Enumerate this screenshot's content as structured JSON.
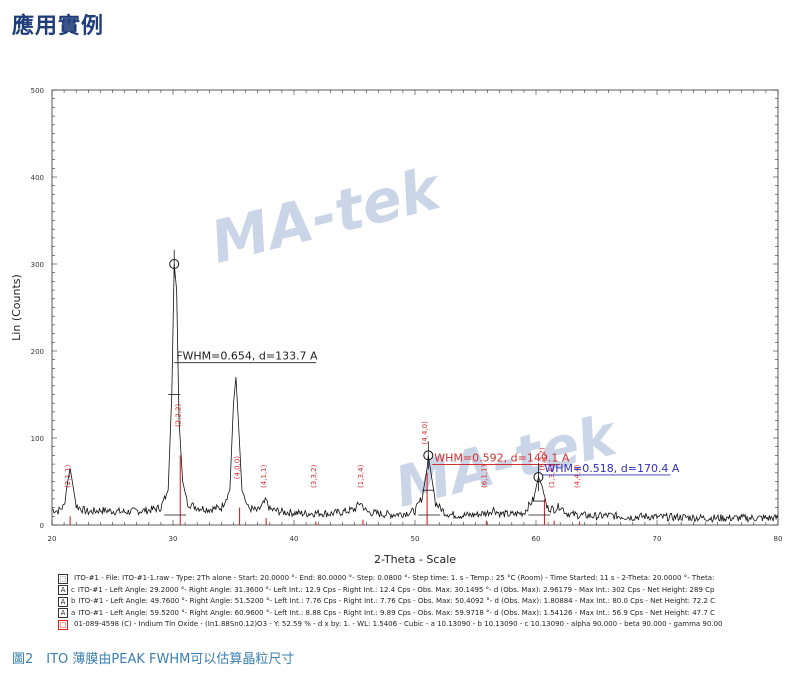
{
  "page": {
    "title": "應用實例",
    "caption": "圖2　ITO 薄膜由PEAK FWHM可以估算晶粒尺寸"
  },
  "watermark": "MA-tek",
  "chart_data": {
    "type": "line",
    "title": "",
    "xlabel": "2-Theta - Scale",
    "ylabel": "Lin (Counts)",
    "xlim": [
      20,
      80
    ],
    "ylim": [
      0,
      500
    ],
    "xticks": [
      20,
      30,
      40,
      50,
      60,
      70,
      80
    ],
    "yticks": [
      0,
      100,
      200,
      300,
      400,
      500
    ],
    "grid": false,
    "series": [
      {
        "values_xy": [
          [
            20.0,
            18
          ],
          [
            20.5,
            16
          ],
          [
            21.0,
            22
          ],
          [
            21.3,
            50
          ],
          [
            21.5,
            65
          ],
          [
            21.7,
            48
          ],
          [
            22.0,
            22
          ],
          [
            22.5,
            18
          ],
          [
            23.0,
            15
          ],
          [
            24.0,
            17
          ],
          [
            25.0,
            16
          ],
          [
            26.0,
            15
          ],
          [
            27.0,
            16
          ],
          [
            28.0,
            17
          ],
          [
            29.0,
            20
          ],
          [
            29.6,
            40
          ],
          [
            29.9,
            150
          ],
          [
            30.1,
            300
          ],
          [
            30.3,
            270
          ],
          [
            30.5,
            120
          ],
          [
            30.8,
            50
          ],
          [
            31.2,
            25
          ],
          [
            32.0,
            20
          ],
          [
            33.0,
            18
          ],
          [
            34.0,
            20
          ],
          [
            34.7,
            40
          ],
          [
            35.0,
            140
          ],
          [
            35.2,
            170
          ],
          [
            35.4,
            120
          ],
          [
            35.7,
            40
          ],
          [
            36.2,
            20
          ],
          [
            37.0,
            16
          ],
          [
            37.7,
            28
          ],
          [
            38.0,
            18
          ],
          [
            39.0,
            15
          ],
          [
            40.0,
            14
          ],
          [
            41.0,
            13
          ],
          [
            42.0,
            14
          ],
          [
            43.0,
            13
          ],
          [
            44.0,
            15
          ],
          [
            45.0,
            18
          ],
          [
            45.5,
            26
          ],
          [
            46.0,
            15
          ],
          [
            47.0,
            13
          ],
          [
            48.0,
            12
          ],
          [
            49.0,
            13
          ],
          [
            50.0,
            16
          ],
          [
            50.6,
            32
          ],
          [
            51.0,
            65
          ],
          [
            51.1,
            80
          ],
          [
            51.3,
            62
          ],
          [
            51.7,
            25
          ],
          [
            52.5,
            14
          ],
          [
            53.0,
            12
          ],
          [
            54.0,
            11
          ],
          [
            55.0,
            12
          ],
          [
            56.0,
            14
          ],
          [
            56.5,
            18
          ],
          [
            57.0,
            13
          ],
          [
            58.0,
            12
          ],
          [
            59.0,
            14
          ],
          [
            59.8,
            30
          ],
          [
            60.2,
            55
          ],
          [
            60.5,
            45
          ],
          [
            60.9,
            20
          ],
          [
            61.5,
            18
          ],
          [
            62.0,
            22
          ],
          [
            62.5,
            14
          ],
          [
            63.0,
            12
          ],
          [
            64.0,
            11
          ],
          [
            65.0,
            10
          ],
          [
            66.0,
            11
          ],
          [
            67.0,
            10
          ],
          [
            68.0,
            9
          ],
          [
            69.0,
            10
          ],
          [
            70.0,
            9
          ],
          [
            72.0,
            9
          ],
          [
            74.0,
            8
          ],
          [
            76.0,
            8
          ],
          [
            78.0,
            8
          ],
          [
            80.0,
            8
          ]
        ]
      }
    ],
    "reference_peaks": [
      {
        "x": 21.5,
        "h": 10,
        "label": "(2,1,1)"
      },
      {
        "x": 30.6,
        "h": 80,
        "label": "(2,2,2)"
      },
      {
        "x": 35.5,
        "h": 20,
        "label": "(4,0,0)"
      },
      {
        "x": 37.7,
        "h": 8,
        "label": "(4,1,1)"
      },
      {
        "x": 41.8,
        "h": 4,
        "label": "(3,3,2)"
      },
      {
        "x": 45.7,
        "h": 6,
        "label": "(1,3,4)"
      },
      {
        "x": 51.0,
        "h": 60,
        "label": "(4,4,0)"
      },
      {
        "x": 55.9,
        "h": 5,
        "label": "(6,1,1)"
      },
      {
        "x": 60.7,
        "h": 30,
        "label": "(6,2,2)"
      },
      {
        "x": 61.5,
        "h": 5,
        "label": "(1,3,6)"
      },
      {
        "x": 63.6,
        "h": 4,
        "label": "(4,4,4)"
      }
    ],
    "annotations": [
      {
        "text": "FWHM=0.654, d=133.7 A",
        "x": 30.1,
        "y": 300,
        "color": "#222222"
      },
      {
        "text": "WHM=0.592, d=149.1 A",
        "x": 51.1,
        "y": 80,
        "color": "#d03030"
      },
      {
        "text": "WHM=0.518, d=170.4 A",
        "x": 60.2,
        "y": 55,
        "color": "#3030c0"
      }
    ],
    "legend": [
      {
        "symbol": "⬚",
        "index": "",
        "text": "ITO-#1 - File: ITO-#1-1.raw - Type: 2Th alone - Start: 20.0000 °- End: 80.0000 °- Step: 0.0800 °- Step time: 1. s - Temp.: 25 °C (Room) - Time Started: 11 s - 2-Theta: 20.0000 °- Theta:"
      },
      {
        "symbol": "A",
        "index": "c",
        "text": "ITO-#1 - Left Angle: 29.2000 °- Right Angle: 31.3600 °- Left Int.: 12.9 Cps - Right Int.: 12.4 Cps - Obs. Max: 30.1495 °- d (Obs. Max): 2.96179 - Max Int.: 302 Cps - Net Height: 289 Cp"
      },
      {
        "symbol": "A",
        "index": "b",
        "text": "ITO-#1 - Left Angle: 49.7600 °- Right Angle: 51.5200 °- Left Int.: 7.76 Cps - Right Int.: 7.76 Cps - Obs. Max: 50.4092 °- d (Obs. Max): 1.80884 - Max Int.: 80.0 Cps - Net Height: 72.2 C"
      },
      {
        "symbol": "A",
        "index": "a",
        "text": "ITO-#1 - Left Angle: 59.5200 °- Right Angle: 60.9600 °- Left Int.: 8.88 Cps - Right Int.: 9.89 Cps - Obs. Max: 59.9718 °- d (Obs. Max): 1.54126 - Max Int.: 56.9 Cps - Net Height: 47.7 C"
      },
      {
        "symbol": "□",
        "index": "",
        "text": "01-089-4598 (C) - Indium Tin Oxide - (In1.88Sn0.12)O3 - Y: 52.59 % - d x by: 1. - WL: 1.5406 - Cubic - a 10.13090 - b 10.13090 - c 10.13090 - alpha 90.000 - beta 90.000 - gamma 90.00"
      }
    ]
  }
}
